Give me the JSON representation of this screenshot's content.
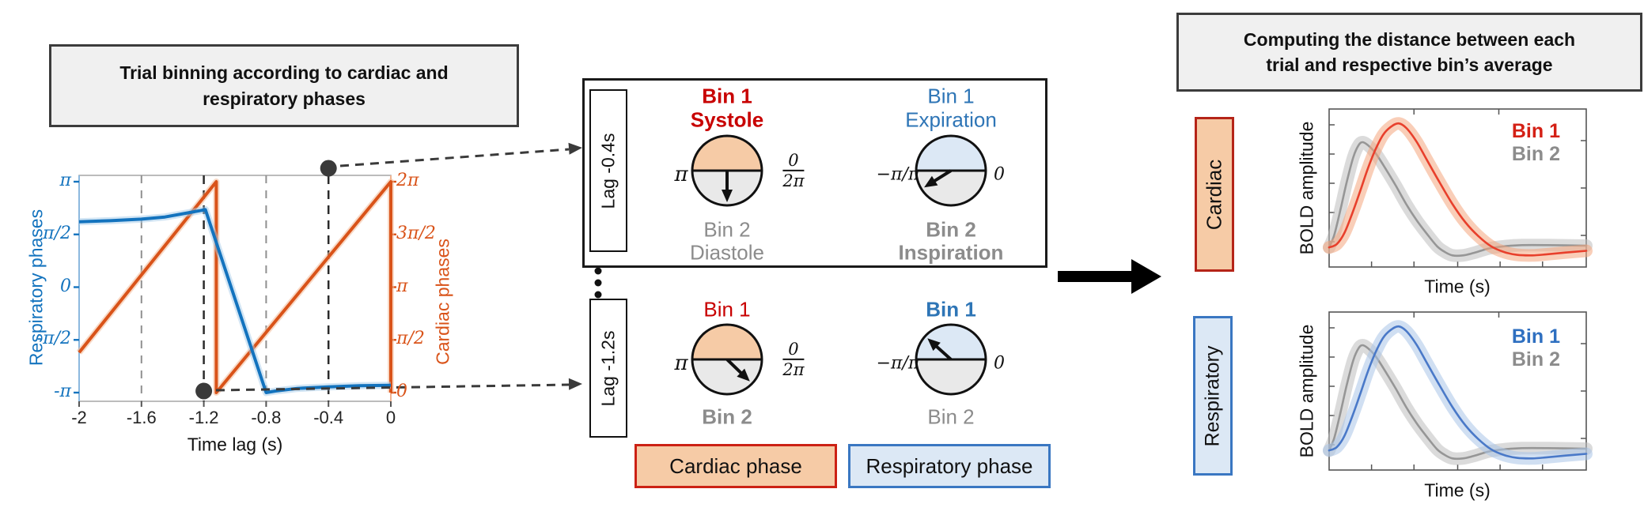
{
  "canvas": {
    "bg": "#FFFFFF"
  },
  "colors": {
    "respiratory_line": "#1373BE",
    "respiratory_halo": "#A6CCEA",
    "cardiac_line": "#D95319",
    "cardiac_halo": "#F2BA97",
    "axis_box": "#ABABAB",
    "left_spine": "#8CB8DE",
    "right_spine": "#F0B493",
    "grid_gray": "#909090",
    "grid_black": "#2B2B2B",
    "connector": "#3A3A3A",
    "marker_dot": "#3A3A3A",
    "cardiac_fill": "#F6CBA6",
    "respiratory_fill": "#DCE8F5",
    "circle_gray": "#E9E9E9",
    "circle_stroke": "#111111",
    "red_text": "#C80000",
    "red_border": "#CC2114",
    "dark_red_border": "#B52418",
    "blue_text": "#2E75B6",
    "blue_border": "#3A77C2",
    "gray_text": "#8C8C8C",
    "hrf_red": "#E8402C",
    "hrf_red_band": "#F4A57E",
    "hrf_gray": "#969696",
    "hrf_gray_band": "#BEBEBE",
    "hrf_blue": "#4A79C8",
    "hrf_blue_band": "#A9C4E8",
    "plot_frame": "#555555"
  },
  "left_panel": {
    "title_line1": "Trial binning according to cardiac and",
    "title_line2": "respiratory phases"
  },
  "right_panel": {
    "title_line1": "Computing the distance between each",
    "title_line2": "trial and respective bin’s average",
    "row_labels": [
      "Cardiac",
      "Respiratory"
    ]
  },
  "lag_boxes": [
    {
      "label": "Lag -0.4s"
    },
    {
      "label": "Lag -1.2s"
    }
  ],
  "bin_groups": [
    {
      "cardiac": {
        "top1": "Bin 1",
        "top2": "Systole",
        "bot1": "Bin 2",
        "bot2": "Diastole",
        "left_label": "π",
        "frac_num": "0",
        "frac_den": "2π",
        "arrow_angle_deg": -90
      },
      "respiratory": {
        "top1": "Bin 1",
        "top2": "Expiration",
        "bot1": "Bin 2",
        "bot2": "Inspiration",
        "left_label": "−π/π",
        "right_label": "0",
        "arrow_angle_deg": 212
      }
    },
    {
      "cardiac": {
        "top1": "Bin 1",
        "bot1": "Bin 2",
        "left_label": "π",
        "frac_num": "0",
        "frac_den": "2π",
        "arrow_angle_deg": -44
      },
      "respiratory": {
        "top1": "Bin 1",
        "bot1": "Bin 2",
        "left_label": "−π/π",
        "right_label": "0",
        "arrow_angle_deg": 138
      }
    }
  ],
  "phase_legend": [
    {
      "label": "Cardiac phase"
    },
    {
      "label": "Respiratory phase"
    }
  ],
  "chart_data": [
    {
      "type": "line",
      "xlabel": "Time lag (s)",
      "ylabel_left": "Respiratory phases",
      "ylabel_right": "Cardiac phases",
      "xlim": [
        -2,
        0
      ],
      "ylim_left": [
        "-π",
        "π"
      ],
      "ylim_right": [
        "0",
        "2π"
      ],
      "x_tick_values": [
        -2,
        -1.6,
        -1.2,
        -0.8,
        -0.4,
        0
      ],
      "x_tick_labels": [
        "-2",
        "-1.6",
        "-1.2",
        "-0.8",
        "-0.4",
        "0"
      ],
      "y_tick_values_left_pi": [
        1,
        0.5,
        0,
        -0.5,
        -1
      ],
      "y_tick_labels_left": [
        "π",
        "π/2",
        "0",
        "-π/2",
        "-π"
      ],
      "y_tick_values_right_pi": [
        2,
        1.5,
        1,
        0.5,
        0
      ],
      "y_tick_labels_right": [
        "2π",
        "3π/2",
        "π",
        "π/2",
        "0"
      ],
      "dashed_gray_x": [
        -1.6,
        -0.8
      ],
      "dashed_black_x": [
        -1.2,
        -0.4
      ],
      "marker_points": [
        {
          "x": -0.4,
          "y_pi_left": 1
        },
        {
          "x": -1.2,
          "y_pi_left": -1
        }
      ],
      "series": [
        {
          "name": "respiratory phase",
          "axis": "left",
          "units": "pi",
          "x": [
            -2,
            -1.8,
            -1.6,
            -1.45,
            -1.3,
            -1.19,
            -0.8,
            -0.74,
            -0.6,
            -0.4,
            -0.2,
            0
          ],
          "y": [
            0.62,
            0.63,
            0.645,
            0.665,
            0.705,
            0.735,
            -1.0,
            -0.985,
            -0.96,
            -0.945,
            -0.935,
            -0.93
          ]
        },
        {
          "name": "cardiac phase",
          "axis": "right",
          "units": "pi",
          "x": [
            -2,
            -1.12,
            -1.12,
            0,
            0
          ],
          "y": [
            0.38,
            2,
            0,
            2,
            0
          ]
        }
      ]
    },
    {
      "type": "line",
      "group": "Cardiac",
      "xlabel": "Time (s)",
      "ylabel": "BOLD amplitude",
      "legend": [
        "Bin 1",
        "Bin 2"
      ],
      "legend_position": "top-right",
      "series": [
        {
          "name": "Bin 1",
          "color_role": "hrf_red",
          "band_role": "hrf_red_band",
          "x": [
            0,
            0.03,
            0.06,
            0.09,
            0.12,
            0.15,
            0.18,
            0.21,
            0.24,
            0.27,
            0.3,
            0.34,
            0.38,
            0.43,
            0.48,
            0.53,
            0.58,
            0.63,
            0.68,
            0.73,
            0.79,
            0.85,
            0.92,
            1.0
          ],
          "y": [
            -0.05,
            -0.02,
            0.08,
            0.25,
            0.44,
            0.64,
            0.81,
            0.94,
            1.01,
            1.04,
            1.0,
            0.88,
            0.72,
            0.52,
            0.33,
            0.17,
            0.05,
            -0.04,
            -0.09,
            -0.115,
            -0.12,
            -0.11,
            -0.095,
            -0.08
          ]
        },
        {
          "name": "Bin 2",
          "color_role": "hrf_gray",
          "band_role": "hrf_gray_band",
          "x": [
            0,
            0.02,
            0.045,
            0.07,
            0.095,
            0.115,
            0.13,
            0.15,
            0.18,
            0.22,
            0.26,
            0.3,
            0.34,
            0.38,
            0.42,
            0.45,
            0.48,
            0.52,
            0.56,
            0.62,
            0.68,
            0.75,
            0.85,
            1.0
          ],
          "y": [
            -0.05,
            0.06,
            0.29,
            0.54,
            0.75,
            0.85,
            0.875,
            0.85,
            0.78,
            0.64,
            0.49,
            0.33,
            0.19,
            0.07,
            -0.04,
            -0.09,
            -0.12,
            -0.12,
            -0.1,
            -0.06,
            -0.04,
            -0.03,
            -0.03,
            -0.035
          ]
        }
      ]
    },
    {
      "type": "line",
      "group": "Respiratory",
      "xlabel": "Time (s)",
      "ylabel": "BOLD amplitude",
      "legend": [
        "Bin 1",
        "Bin 2"
      ],
      "legend_position": "top-right",
      "series": [
        {
          "name": "Bin 1",
          "color_role": "hrf_blue",
          "band_role": "hrf_blue_band",
          "x": [
            0,
            0.03,
            0.06,
            0.09,
            0.12,
            0.15,
            0.18,
            0.21,
            0.24,
            0.27,
            0.3,
            0.34,
            0.38,
            0.43,
            0.48,
            0.53,
            0.58,
            0.63,
            0.68,
            0.73,
            0.79,
            0.85,
            0.92,
            1.0
          ],
          "y": [
            -0.05,
            -0.02,
            0.08,
            0.25,
            0.44,
            0.64,
            0.81,
            0.94,
            1.01,
            1.04,
            1.0,
            0.88,
            0.72,
            0.52,
            0.33,
            0.17,
            0.05,
            -0.04,
            -0.09,
            -0.115,
            -0.12,
            -0.11,
            -0.095,
            -0.08
          ]
        },
        {
          "name": "Bin 2",
          "color_role": "hrf_gray",
          "band_role": "hrf_gray_band",
          "x": [
            0,
            0.02,
            0.045,
            0.07,
            0.095,
            0.115,
            0.13,
            0.15,
            0.18,
            0.22,
            0.26,
            0.3,
            0.34,
            0.38,
            0.42,
            0.45,
            0.48,
            0.52,
            0.56,
            0.62,
            0.68,
            0.75,
            0.85,
            1.0
          ],
          "y": [
            -0.05,
            0.06,
            0.29,
            0.54,
            0.75,
            0.85,
            0.875,
            0.85,
            0.78,
            0.64,
            0.49,
            0.33,
            0.19,
            0.07,
            -0.04,
            -0.09,
            -0.12,
            -0.12,
            -0.1,
            -0.06,
            -0.04,
            -0.03,
            -0.03,
            -0.035
          ]
        }
      ]
    }
  ]
}
